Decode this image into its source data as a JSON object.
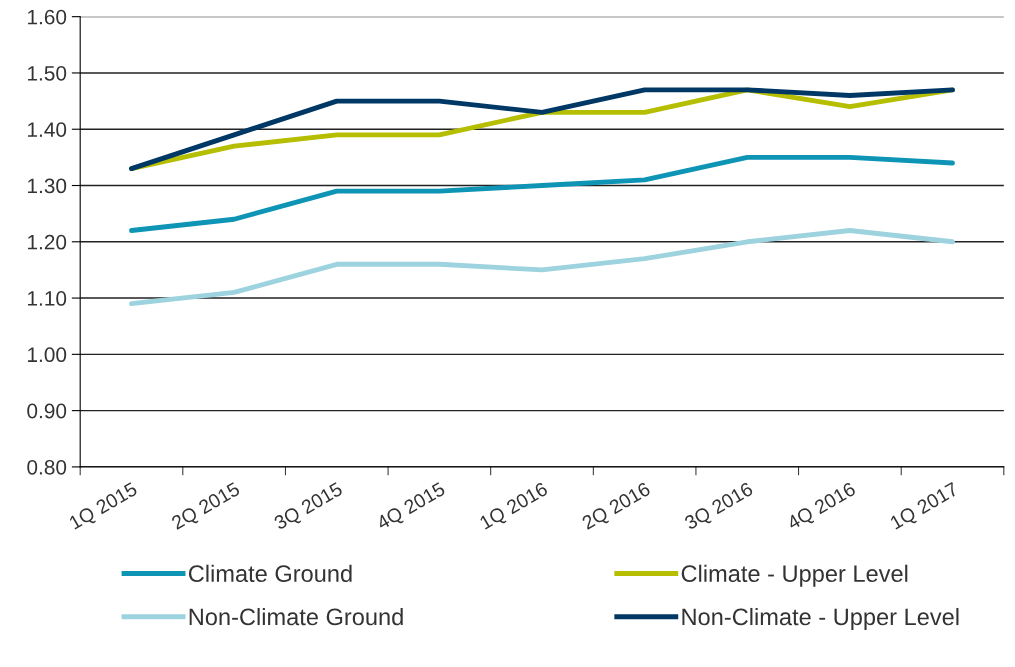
{
  "chart_data": {
    "type": "line",
    "categories": [
      "1Q 2015",
      "2Q 2015",
      "3Q 2015",
      "4Q 2015",
      "1Q 2016",
      "2Q 2016",
      "3Q 2016",
      "4Q 2016",
      "1Q 2017"
    ],
    "series": [
      {
        "name": "Climate Ground",
        "color": "#0e94b5",
        "values": [
          1.22,
          1.24,
          1.29,
          1.29,
          1.3,
          1.31,
          1.35,
          1.35,
          1.34
        ]
      },
      {
        "name": "Climate - Upper Level",
        "color": "#b5be00",
        "values": [
          1.33,
          1.37,
          1.39,
          1.39,
          1.43,
          1.43,
          1.47,
          1.44,
          1.47
        ]
      },
      {
        "name": "Non-Climate Ground",
        "color": "#9dd3df",
        "values": [
          1.09,
          1.11,
          1.16,
          1.16,
          1.15,
          1.17,
          1.2,
          1.22,
          1.2
        ]
      },
      {
        "name": "Non-Climate - Upper Level",
        "color": "#003865",
        "values": [
          1.33,
          1.39,
          1.45,
          1.45,
          1.43,
          1.47,
          1.47,
          1.46,
          1.47
        ]
      }
    ],
    "ylim": [
      0.8,
      1.6
    ],
    "yticks": [
      {
        "value": 0.8,
        "label": "0.80"
      },
      {
        "value": 0.9,
        "label": "0.90"
      },
      {
        "value": 1.0,
        "label": "1.00"
      },
      {
        "value": 1.1,
        "label": "1.10"
      },
      {
        "value": 1.2,
        "label": "1.20"
      },
      {
        "value": 1.3,
        "label": "1.30"
      },
      {
        "value": 1.4,
        "label": "1.40"
      },
      {
        "value": 1.5,
        "label": "1.50"
      },
      {
        "value": 1.6,
        "label": "1.60"
      }
    ],
    "grid": "y",
    "legend": "bottom",
    "marker": "none",
    "line_style": "solid"
  }
}
